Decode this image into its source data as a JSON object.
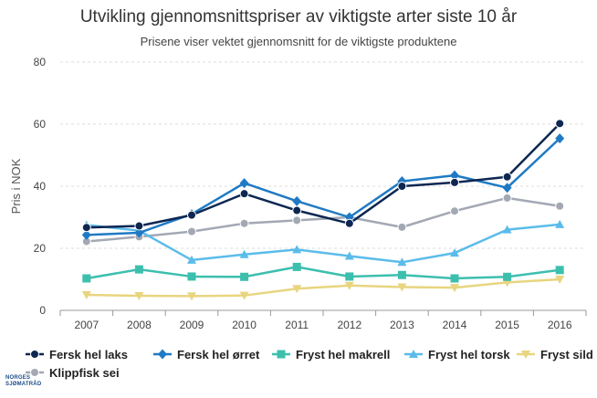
{
  "title": "Utvikling gjennomsnittspriser av viktigste arter siste 10 år",
  "subtitle": "Prisene viser vektet gjennomsnitt for de viktigste produktene",
  "logo": {
    "line1": "NORGES",
    "line2": "SJØMATRÅD"
  },
  "chart_data": {
    "type": "line",
    "title": "Utvikling gjennomsnittspriser av viktigste arter siste 10 år",
    "subtitle": "Prisene viser vektet gjennomsnitt for de viktigste produktene",
    "xlabel": "",
    "ylabel": "Pris i NOK",
    "ylim": [
      0,
      80
    ],
    "yticks": [
      0,
      20,
      40,
      60,
      80
    ],
    "grid": true,
    "legend_position": "bottom",
    "x": [
      "2007",
      "2008",
      "2009",
      "2010",
      "2011",
      "2012",
      "2013",
      "2014",
      "2015",
      "2016"
    ],
    "series": [
      {
        "name": "Fersk hel laks",
        "color": "#0d2752",
        "marker": "circle",
        "values": [
          26.7,
          27.2,
          30.7,
          37.6,
          32.2,
          28.0,
          40.0,
          41.2,
          43.0,
          60.2
        ]
      },
      {
        "name": "Fersk hel ørret",
        "color": "#1f7ac4",
        "marker": "diamond",
        "values": [
          24.3,
          25.0,
          31.0,
          41.0,
          35.2,
          30.0,
          41.6,
          43.5,
          39.5,
          55.4
        ]
      },
      {
        "name": "Fryst hel makrell",
        "color": "#3dbfae",
        "marker": "square",
        "values": [
          10.3,
          13.2,
          10.9,
          10.8,
          14.0,
          10.9,
          11.4,
          10.3,
          10.8,
          13.0
        ]
      },
      {
        "name": "Fryst hel torsk",
        "color": "#5bbcea",
        "marker": "triangle",
        "values": [
          27.5,
          25.7,
          16.2,
          18.0,
          19.6,
          17.5,
          15.5,
          18.5,
          26.0,
          27.7
        ]
      },
      {
        "name": "Fryst sild",
        "color": "#e8d57f",
        "marker": "triangle-down",
        "values": [
          5.0,
          4.7,
          4.6,
          4.8,
          7.0,
          8.0,
          7.5,
          7.3,
          9.0,
          10.0
        ]
      },
      {
        "name": "Klippfisk sei",
        "color": "#a3a8b4",
        "marker": "circle",
        "values": [
          22.2,
          23.7,
          25.4,
          28.0,
          29.0,
          30.0,
          26.8,
          32.0,
          36.2,
          33.6
        ]
      }
    ]
  }
}
